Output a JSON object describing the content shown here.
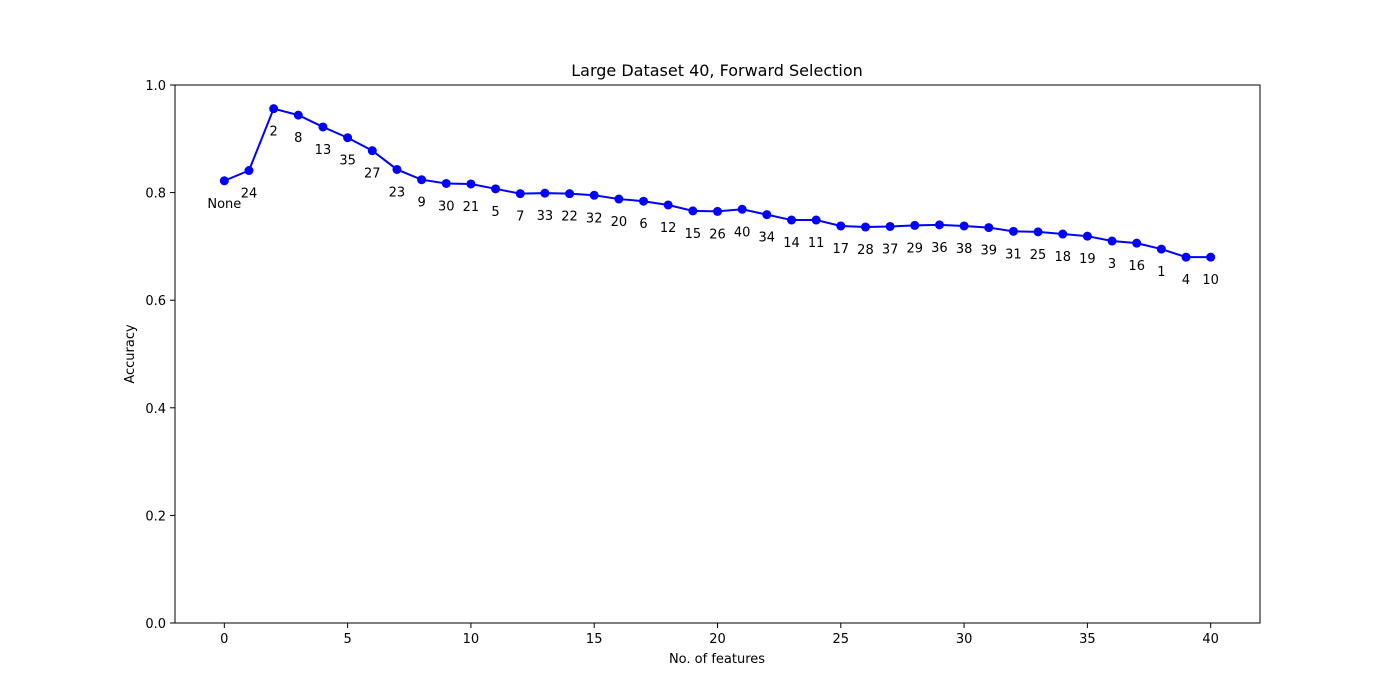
{
  "chart_data": {
    "type": "line",
    "title": "Large Dataset 40, Forward Selection",
    "xlabel": "No. of features",
    "ylabel": "Accuracy",
    "xlim": [
      -2,
      42
    ],
    "ylim": [
      0,
      1.0
    ],
    "xticks": [
      0,
      5,
      10,
      15,
      20,
      25,
      30,
      35,
      40
    ],
    "xtick_labels": [
      "0",
      "5",
      "10",
      "15",
      "20",
      "25",
      "30",
      "35",
      "40"
    ],
    "yticks": [
      0.0,
      0.2,
      0.4,
      0.6,
      0.8,
      1.0
    ],
    "ytick_labels": [
      "0.0",
      "0.2",
      "0.4",
      "0.6",
      "0.8",
      "1.0"
    ],
    "grid": false,
    "line_color": "#0000ff",
    "marker_color": "#0000ff",
    "x": [
      0,
      1,
      2,
      3,
      4,
      5,
      6,
      7,
      8,
      9,
      10,
      11,
      12,
      13,
      14,
      15,
      16,
      17,
      18,
      19,
      20,
      21,
      22,
      23,
      24,
      25,
      26,
      27,
      28,
      29,
      30,
      31,
      32,
      33,
      34,
      35,
      36,
      37,
      38,
      39,
      40
    ],
    "y": [
      0.822,
      0.841,
      0.956,
      0.944,
      0.922,
      0.902,
      0.878,
      0.843,
      0.824,
      0.817,
      0.816,
      0.807,
      0.798,
      0.799,
      0.798,
      0.795,
      0.788,
      0.784,
      0.777,
      0.766,
      0.765,
      0.769,
      0.759,
      0.749,
      0.749,
      0.738,
      0.736,
      0.737,
      0.739,
      0.74,
      0.738,
      0.735,
      0.728,
      0.727,
      0.723,
      0.719,
      0.71,
      0.706,
      0.695,
      0.68,
      0.68
    ],
    "point_labels": [
      "None",
      "24",
      "2",
      "8",
      "13",
      "35",
      "27",
      "23",
      "9",
      "30",
      "21",
      "5",
      "7",
      "33",
      "22",
      "32",
      "20",
      "6",
      "12",
      "15",
      "26",
      "40",
      "34",
      "14",
      "11",
      "17",
      "28",
      "37",
      "29",
      "36",
      "38",
      "39",
      "31",
      "25",
      "18",
      "19",
      "3",
      "16",
      "1",
      "4",
      "10"
    ]
  }
}
